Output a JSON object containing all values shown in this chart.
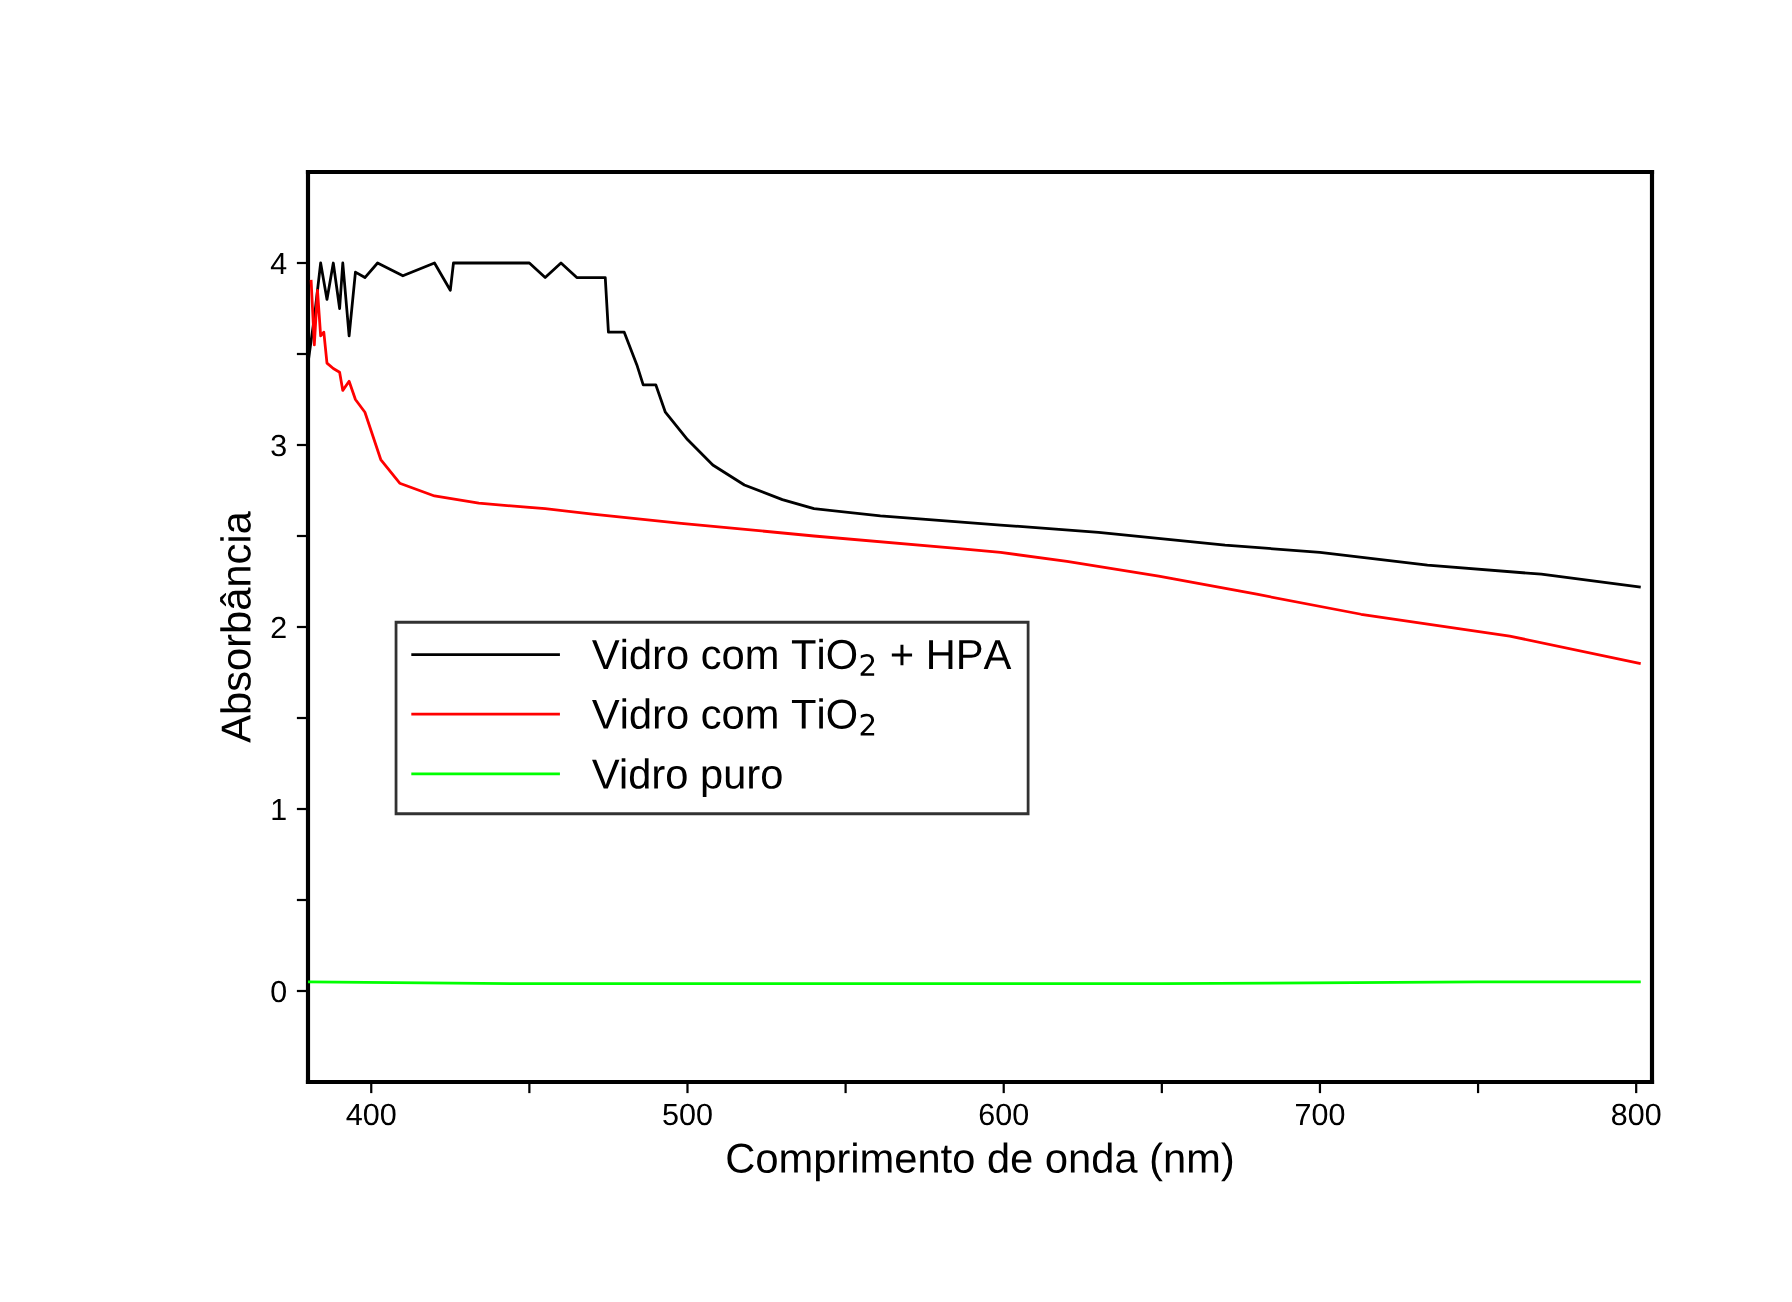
{
  "chart_data": {
    "type": "line",
    "xlabel": "Comprimento de onda (nm)",
    "ylabel": "Absorbância",
    "xlim": [
      380,
      805
    ],
    "ylim": [
      -0.5,
      4.5
    ],
    "xticks": [
      400,
      {
        "value": 450,
        "label": null
      },
      500,
      {
        "value": 550,
        "label": null
      },
      600,
      {
        "value": 650,
        "label": null
      },
      700,
      {
        "value": 750,
        "label": null
      },
      800
    ],
    "yticks": [
      0,
      {
        "value": 0.5,
        "label": null
      },
      1,
      {
        "value": 1.5,
        "label": null
      },
      2,
      {
        "value": 2.5,
        "label": null
      },
      3,
      {
        "value": 3.5,
        "label": null
      },
      4
    ],
    "grid": false,
    "legend": "left",
    "marker": "none",
    "line_style": "solid",
    "series": [
      {
        "name": "Vidro com TiO$_{2}$ + HPA",
        "color": "#000000",
        "x": [
          380,
          382,
          384,
          386,
          388,
          390,
          391,
          393,
          395,
          398,
          402,
          410,
          420,
          425,
          426,
          430,
          440,
          450,
          455,
          460,
          465,
          470,
          474,
          475,
          480,
          484,
          486,
          490,
          493,
          500,
          508,
          518,
          530,
          540,
          561,
          599,
          630,
          670,
          700,
          734,
          770,
          801
        ],
        "values": [
          3.45,
          3.7,
          4.0,
          3.8,
          4.0,
          3.75,
          4.0,
          3.6,
          3.95,
          3.92,
          4.0,
          3.93,
          4.0,
          3.85,
          4.0,
          4.0,
          4.0,
          4.0,
          3.92,
          4.0,
          3.92,
          3.92,
          3.92,
          3.62,
          3.62,
          3.44,
          3.33,
          3.33,
          3.18,
          3.03,
          2.89,
          2.78,
          2.7,
          2.65,
          2.61,
          2.56,
          2.52,
          2.45,
          2.41,
          2.34,
          2.29,
          2.22
        ]
      },
      {
        "name": "Vidro com TiO$_{2}$",
        "color": "#ff0000",
        "x": [
          381,
          382,
          383,
          384,
          385,
          386,
          388,
          390,
          391,
          393,
          395,
          398,
          403,
          409,
          420,
          434,
          455,
          470,
          498,
          540,
          586,
          599,
          620,
          649,
          680,
          713,
          760,
          801
        ],
        "values": [
          3.9,
          3.55,
          3.85,
          3.6,
          3.62,
          3.45,
          3.42,
          3.4,
          3.3,
          3.35,
          3.25,
          3.18,
          2.92,
          2.79,
          2.72,
          2.68,
          2.65,
          2.62,
          2.57,
          2.5,
          2.43,
          2.41,
          2.36,
          2.28,
          2.18,
          2.07,
          1.95,
          1.8
        ]
      },
      {
        "name": "Vidro puro",
        "color": "#00ff00",
        "x": [
          380,
          450,
          550,
          650,
          750,
          801
        ],
        "values": [
          0.05,
          0.04,
          0.04,
          0.04,
          0.05,
          0.05
        ]
      }
    ]
  }
}
